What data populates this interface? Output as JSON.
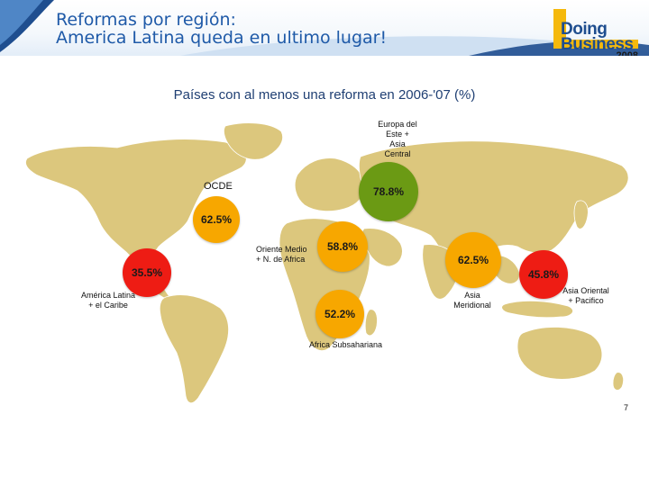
{
  "header": {
    "title_line1": "Reformas por región:",
    "title_line2": "America Latina queda en ultimo lugar!",
    "logo": {
      "line1": "Doing",
      "line2": "Business",
      "year": "2008"
    }
  },
  "subtitle": "Países con al menos una reforma en 2006-'07 (%)",
  "regions": {
    "europe_central_asia": {
      "label_lines": [
        "Europa del",
        "Este +",
        "Asia",
        "Central"
      ],
      "value": "78.8%"
    },
    "oecd": {
      "label": "OCDE",
      "value": "62.5%"
    },
    "mena": {
      "label_lines": [
        "Oriente Medio",
        "+ N. de Africa"
      ],
      "value": "58.8%"
    },
    "latin_america": {
      "label_lines": [
        "América Latina",
        "+ el Caribe"
      ],
      "value": "35.5%"
    },
    "south_asia": {
      "label_lines": [
        "Asia",
        "Meridional"
      ],
      "value": "62.5%"
    },
    "east_asia_pacific": {
      "label_lines": [
        "Asia Oriental",
        "+ Pacifico"
      ],
      "value": "45.8%"
    },
    "sub_saharan_africa": {
      "label": "Africa Subsahariana",
      "value": "52.2%"
    }
  },
  "page_number": "7",
  "colors": {
    "title": "#1f5aa8",
    "map_land": "#dcc77d",
    "bubble_high": "#6b9a14",
    "bubble_mid": "#f7a700",
    "bubble_low": "#ee1c14"
  }
}
